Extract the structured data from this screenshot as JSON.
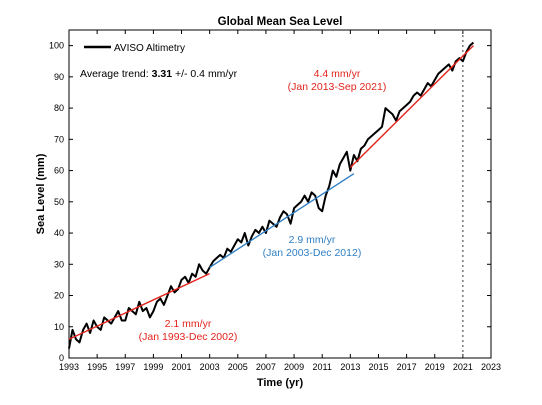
{
  "chart_data": {
    "type": "line",
    "title": "Global Mean Sea Level",
    "xlabel": "Time (yr)",
    "ylabel": "Sea Level (mm)",
    "xlim": [
      1993,
      2023
    ],
    "ylim": [
      0,
      105
    ],
    "xticks": [
      1993,
      1995,
      1997,
      1999,
      2001,
      2003,
      2005,
      2007,
      2009,
      2011,
      2013,
      2015,
      2017,
      2019,
      2021,
      2023
    ],
    "yticks": [
      0,
      10,
      20,
      30,
      40,
      50,
      60,
      70,
      80,
      90,
      100
    ],
    "legend": {
      "position": "top-left",
      "entries": [
        "AVISO Altimetry"
      ]
    },
    "average_trend": {
      "prefix": "Average trend: ",
      "value": "3.31",
      "suffix": " +/- 0.4 mm/yr"
    },
    "series": [
      {
        "name": "AVISO Altimetry",
        "color": "#000000",
        "x": [
          1993.0,
          1993.25,
          1993.5,
          1993.75,
          1994.0,
          1994.25,
          1994.5,
          1994.75,
          1995.0,
          1995.25,
          1995.5,
          1995.75,
          1996.0,
          1996.25,
          1996.5,
          1996.75,
          1997.0,
          1997.25,
          1997.5,
          1997.75,
          1998.0,
          1998.25,
          1998.5,
          1998.75,
          1999.0,
          1999.25,
          1999.5,
          1999.75,
          2000.0,
          2000.25,
          2000.5,
          2000.75,
          2001.0,
          2001.25,
          2001.5,
          2001.75,
          2002.0,
          2002.25,
          2002.5,
          2002.75,
          2003.0,
          2003.25,
          2003.5,
          2003.75,
          2004.0,
          2004.25,
          2004.5,
          2004.75,
          2005.0,
          2005.25,
          2005.5,
          2005.75,
          2006.0,
          2006.25,
          2006.5,
          2006.75,
          2007.0,
          2007.25,
          2007.5,
          2007.75,
          2008.0,
          2008.25,
          2008.5,
          2008.75,
          2009.0,
          2009.25,
          2009.5,
          2009.75,
          2010.0,
          2010.25,
          2010.5,
          2010.75,
          2011.0,
          2011.25,
          2011.5,
          2011.75,
          2012.0,
          2012.25,
          2012.5,
          2012.75,
          2013.0,
          2013.25,
          2013.5,
          2013.75,
          2014.0,
          2014.25,
          2014.5,
          2014.75,
          2015.0,
          2015.25,
          2015.5,
          2015.75,
          2016.0,
          2016.25,
          2016.5,
          2016.75,
          2017.0,
          2017.25,
          2017.5,
          2017.75,
          2018.0,
          2018.25,
          2018.5,
          2018.75,
          2019.0,
          2019.25,
          2019.5,
          2019.75,
          2020.0,
          2020.25,
          2020.5,
          2020.75,
          2021.0,
          2021.25,
          2021.5,
          2021.75
        ],
        "y": [
          3,
          9,
          6,
          5,
          9,
          11,
          8,
          12,
          10,
          9,
          13,
          12,
          11,
          13,
          15,
          12,
          12,
          16,
          15,
          14,
          18,
          15,
          16,
          13,
          15,
          18,
          19,
          17,
          20,
          23,
          21,
          22,
          25,
          26,
          24,
          27,
          26,
          30,
          28,
          27,
          29,
          31,
          32,
          33,
          32,
          35,
          34,
          36,
          38,
          37,
          40,
          36,
          39,
          41,
          40,
          42,
          40,
          44,
          43,
          42,
          45,
          47,
          46,
          43,
          48,
          49,
          50,
          52,
          50,
          53,
          52,
          48,
          47,
          52,
          55,
          60,
          58,
          62,
          64,
          66,
          60,
          65,
          63,
          67,
          68,
          70,
          71,
          72,
          73,
          74,
          80,
          79,
          78,
          76,
          79,
          80,
          81,
          82,
          84,
          85,
          84,
          86,
          88,
          87,
          89,
          91,
          92,
          93,
          94,
          92,
          95,
          96,
          95,
          98,
          100,
          101
        ]
      }
    ],
    "trends": [
      {
        "label": "2.1 mm/yr",
        "period": "(Jan 1993-Dec 2002)",
        "color": "#e3241c",
        "x": [
          1993.0,
          2003.0
        ],
        "y": [
          6,
          27
        ]
      },
      {
        "label": "2.9 mm/yr",
        "period": "(Jan 2003-Dec 2012)",
        "color": "#2f7fc4",
        "x": [
          2003.0,
          2013.25
        ],
        "y": [
          29,
          59
        ]
      },
      {
        "label": "4.4 mm/yr",
        "period": "(Jan 2013-Sep 2021)",
        "color": "#e3241c",
        "x": [
          2013.0,
          2021.75
        ],
        "y": [
          61,
          100
        ]
      }
    ],
    "vline": {
      "x": 2021.0,
      "style": "dotted",
      "color": "#555555"
    }
  }
}
